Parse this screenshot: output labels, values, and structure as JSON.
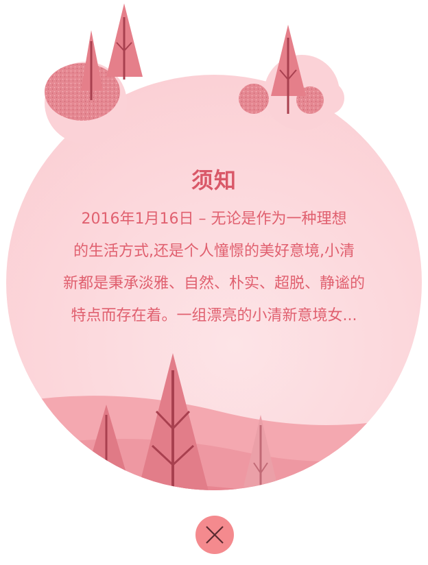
{
  "modal": {
    "title": "须知",
    "body_lines": [
      "2016年1月16日 – 无论是作为一种理想",
      "的生活方式,还是个人憧憬的美好意境,小清",
      "新都是秉承淡雅、自然、朴实、超脱、静谧的",
      "特点而存在着。一组漂亮的小清新意境女..."
    ]
  },
  "colors": {
    "title": "#d95868",
    "body_text": "#e0606f",
    "circle_fill": "#fcd5d9",
    "tree": "#d9727e",
    "close_button": "#f48a8e"
  },
  "icons": {
    "close": "close-icon"
  }
}
